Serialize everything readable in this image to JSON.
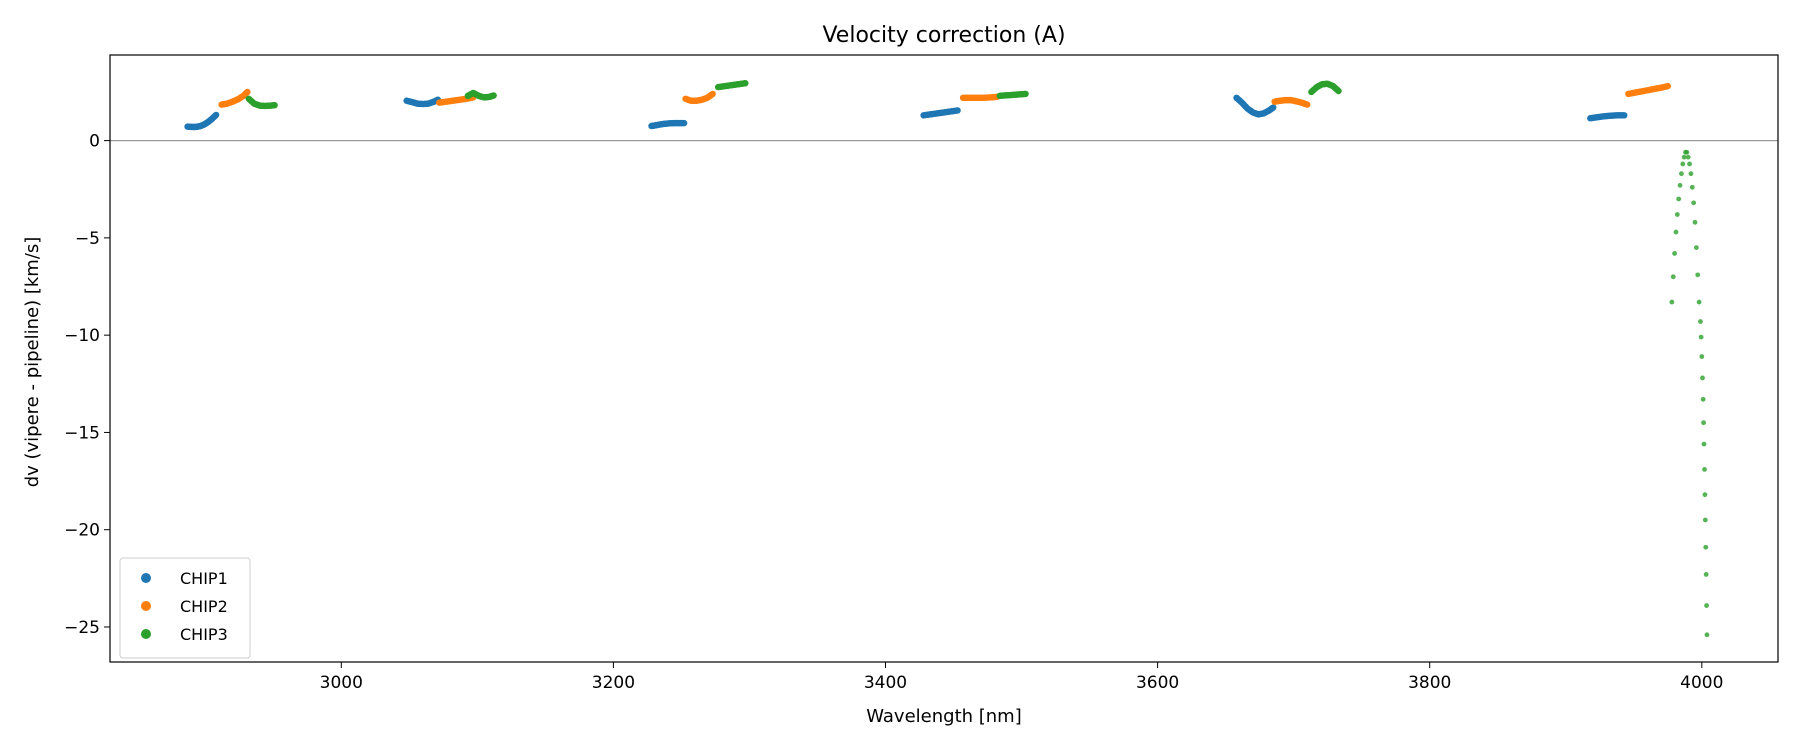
{
  "chart_data": {
    "type": "scatter",
    "title": "Velocity correction (A)",
    "xlabel": "Wavelength [nm]",
    "ylabel": "dv (vipere - pipeline) [km/s]",
    "xlim": [
      2830,
      4056
    ],
    "ylim": [
      -26.8,
      4.4
    ],
    "xticks": [
      3000,
      3200,
      3400,
      3600,
      3800,
      4000
    ],
    "yticks": [
      0,
      -5,
      -10,
      -15,
      -20,
      -25
    ],
    "hline": 0,
    "grid": false,
    "legend": {
      "placement": "lower-left"
    },
    "series": [
      {
        "name": "CHIP1",
        "color": "#1f77b4",
        "segments": [
          [
            [
              2887,
              0.72
            ],
            [
              2890,
              0.7
            ],
            [
              2893,
              0.7
            ],
            [
              2896,
              0.74
            ],
            [
              2899,
              0.82
            ],
            [
              2902,
              0.95
            ],
            [
              2905,
              1.12
            ],
            [
              2908,
              1.32
            ]
          ],
          [
            [
              3048,
              2.05
            ],
            [
              3052,
              1.98
            ],
            [
              3056,
              1.9
            ],
            [
              3060,
              1.88
            ],
            [
              3064,
              1.9
            ],
            [
              3068,
              2.0
            ],
            [
              3071,
              2.1
            ]
          ],
          [
            [
              3228,
              0.75
            ],
            [
              3232,
              0.8
            ],
            [
              3236,
              0.85
            ],
            [
              3240,
              0.88
            ],
            [
              3244,
              0.9
            ],
            [
              3248,
              0.9
            ],
            [
              3252,
              0.9
            ]
          ],
          [
            [
              3428,
              1.3
            ],
            [
              3433,
              1.35
            ],
            [
              3438,
              1.4
            ],
            [
              3443,
              1.45
            ],
            [
              3448,
              1.5
            ],
            [
              3453,
              1.55
            ]
          ],
          [
            [
              3658,
              2.2
            ],
            [
              3662,
              1.95
            ],
            [
              3666,
              1.65
            ],
            [
              3670,
              1.45
            ],
            [
              3674,
              1.35
            ],
            [
              3678,
              1.4
            ],
            [
              3682,
              1.55
            ],
            [
              3685,
              1.7
            ]
          ],
          [
            [
              3918,
              1.15
            ],
            [
              3923,
              1.2
            ],
            [
              3928,
              1.25
            ],
            [
              3933,
              1.28
            ],
            [
              3938,
              1.3
            ],
            [
              3943,
              1.3
            ]
          ]
        ]
      },
      {
        "name": "CHIP2",
        "color": "#ff7f0e",
        "segments": [
          [
            [
              2912,
              1.85
            ],
            [
              2916,
              1.9
            ],
            [
              2920,
              2.0
            ],
            [
              2924,
              2.12
            ],
            [
              2928,
              2.3
            ],
            [
              2931,
              2.5
            ]
          ],
          [
            [
              3072,
              1.95
            ],
            [
              3077,
              2.0
            ],
            [
              3082,
              2.05
            ],
            [
              3087,
              2.1
            ],
            [
              3092,
              2.15
            ],
            [
              3097,
              2.22
            ]
          ],
          [
            [
              3253,
              2.15
            ],
            [
              3257,
              2.05
            ],
            [
              3261,
              2.05
            ],
            [
              3265,
              2.1
            ],
            [
              3269,
              2.2
            ],
            [
              3273,
              2.4
            ]
          ],
          [
            [
              3457,
              2.2
            ],
            [
              3462,
              2.2
            ],
            [
              3467,
              2.2
            ],
            [
              3472,
              2.2
            ],
            [
              3477,
              2.22
            ],
            [
              3482,
              2.25
            ]
          ],
          [
            [
              3686,
              2.0
            ],
            [
              3690,
              2.05
            ],
            [
              3694,
              2.08
            ],
            [
              3698,
              2.08
            ],
            [
              3702,
              2.02
            ],
            [
              3706,
              1.95
            ],
            [
              3710,
              1.85
            ]
          ],
          [
            [
              3946,
              2.4
            ],
            [
              3952,
              2.48
            ],
            [
              3958,
              2.56
            ],
            [
              3964,
              2.64
            ],
            [
              3970,
              2.72
            ],
            [
              3975,
              2.8
            ]
          ]
        ]
      },
      {
        "name": "CHIP3",
        "color": "#2ca02c",
        "segments": [
          [
            [
              2932,
              2.15
            ],
            [
              2936,
              1.9
            ],
            [
              2940,
              1.8
            ],
            [
              2944,
              1.78
            ],
            [
              2948,
              1.8
            ],
            [
              2951,
              1.82
            ]
          ],
          [
            [
              3093,
              2.3
            ],
            [
              3097,
              2.45
            ],
            [
              3101,
              2.3
            ],
            [
              3105,
              2.22
            ],
            [
              3109,
              2.25
            ],
            [
              3112,
              2.32
            ]
          ],
          [
            [
              3277,
              2.75
            ],
            [
              3282,
              2.8
            ],
            [
              3287,
              2.85
            ],
            [
              3292,
              2.9
            ],
            [
              3297,
              2.95
            ]
          ],
          [
            [
              3484,
              2.3
            ],
            [
              3489,
              2.33
            ],
            [
              3494,
              2.35
            ],
            [
              3499,
              2.38
            ],
            [
              3503,
              2.4
            ]
          ],
          [
            [
              3713,
              2.5
            ],
            [
              3717,
              2.75
            ],
            [
              3721,
              2.9
            ],
            [
              3725,
              2.92
            ],
            [
              3729,
              2.8
            ],
            [
              3733,
              2.55
            ]
          ]
        ],
        "sparse": [
          [
            3978,
            -8.3
          ],
          [
            3979,
            -7.0
          ],
          [
            3980,
            -5.8
          ],
          [
            3981,
            -4.7
          ],
          [
            3982,
            -3.8
          ],
          [
            3983,
            -3.0
          ],
          [
            3984,
            -2.3
          ],
          [
            3985,
            -1.7
          ],
          [
            3986,
            -1.2
          ],
          [
            3987,
            -0.85
          ],
          [
            3988,
            -0.6
          ],
          [
            3989,
            -0.6
          ],
          [
            3990,
            -0.85
          ],
          [
            3991,
            -1.2
          ],
          [
            3992,
            -1.7
          ],
          [
            3993,
            -2.4
          ],
          [
            3994,
            -3.2
          ],
          [
            3995,
            -4.2
          ],
          [
            3996,
            -5.5
          ],
          [
            3997,
            -6.9
          ],
          [
            3998,
            -8.3
          ],
          [
            3999,
            -9.3
          ],
          [
            3999.5,
            -10.1
          ],
          [
            4000,
            -11.1
          ],
          [
            4000.5,
            -12.2
          ],
          [
            4001,
            -13.3
          ],
          [
            4001.3,
            -14.5
          ],
          [
            4001.6,
            -15.6
          ],
          [
            4002,
            -16.9
          ],
          [
            4002.3,
            -18.2
          ],
          [
            4002.6,
            -19.5
          ],
          [
            4002.9,
            -20.9
          ],
          [
            4003.2,
            -22.3
          ],
          [
            4003.5,
            -23.9
          ],
          [
            4003.8,
            -25.4
          ]
        ]
      }
    ]
  }
}
